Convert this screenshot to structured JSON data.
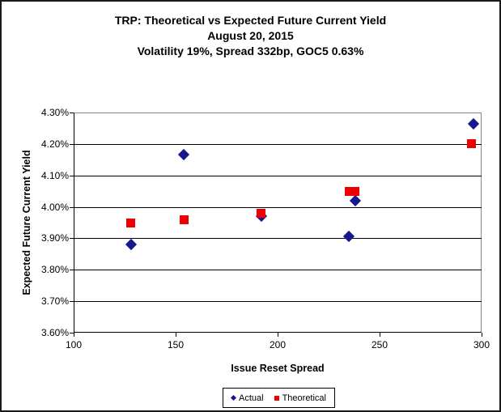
{
  "chart_data": {
    "type": "scatter",
    "title": "TRP: Theoretical vs Expected Future Current Yield",
    "subtitle1": "August 20, 2015",
    "subtitle2": "Volatility 19%, Spread 332bp, GOC5 0.63%",
    "xlabel": "Issue Reset Spread",
    "ylabel": "Expected Future Current Yield",
    "xlim": [
      100,
      300
    ],
    "ylim": [
      3.6,
      4.3
    ],
    "xticks": [
      100,
      150,
      200,
      250,
      300
    ],
    "yticks": [
      3.6,
      3.7,
      3.8,
      3.9,
      4.0,
      4.1,
      4.2,
      4.3
    ],
    "ytick_suffix": "%",
    "grid": "horizontal-only",
    "legend_position": "bottom-center",
    "colors": {
      "actual": "#18188e",
      "theoretical": "#ee0000",
      "gridline": "#000000",
      "plot_border": "#888888",
      "text": "#000000"
    },
    "series": [
      {
        "name": "Actual",
        "marker": "diamond",
        "color": "#18188e",
        "points": [
          [
            128,
            3.88
          ],
          [
            154,
            4.165
          ],
          [
            192,
            3.97
          ],
          [
            235,
            3.905
          ],
          [
            238,
            4.02
          ],
          [
            296,
            4.265
          ]
        ]
      },
      {
        "name": "Theoretical",
        "marker": "square",
        "color": "#ee0000",
        "points": [
          [
            128,
            3.95
          ],
          [
            154,
            3.96
          ],
          [
            192,
            3.98
          ],
          [
            235,
            4.05
          ],
          [
            238,
            4.05
          ],
          [
            295,
            4.2
          ]
        ]
      }
    ]
  }
}
